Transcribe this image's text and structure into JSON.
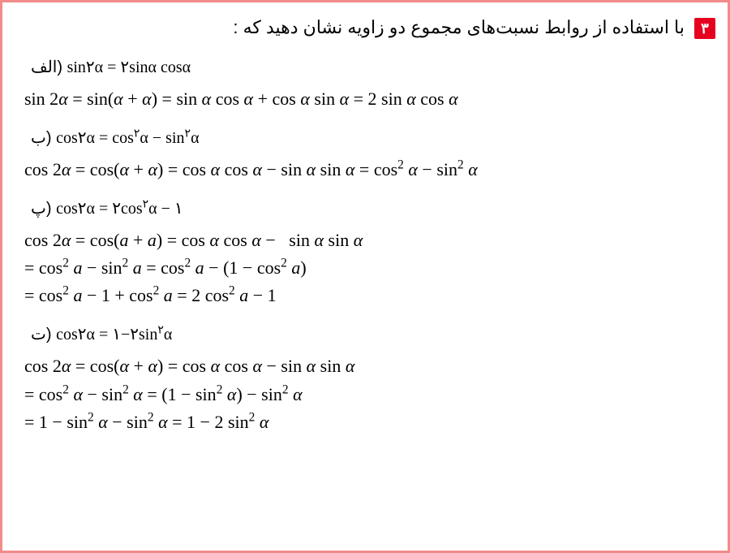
{
  "border_color": "#f38b8b",
  "accent_color": "#e6001f",
  "text_color": "#000000",
  "background_color": "#ffffff",
  "question_number": "۳",
  "question_text": "با استفاده از روابط نسبت‌های مجموع دو زاویه نشان دهید که :",
  "parts": {
    "alef": {
      "label": "الف)",
      "identity": "sin۲α = ۲sinα cosα",
      "solution": "sin 2α = sin(α + α) = sin α cos α + cos α sin α = 2 sin α cos α"
    },
    "be": {
      "label": "ب)",
      "identity": "cos۲α = cos²α − sin²α",
      "solution": "cos 2α = cos(α + α) = cos α cos α − sin α sin α = cos² α − sin² α"
    },
    "pe": {
      "label": "پ)",
      "identity": "cos۲α = ۲cos²α − ۱",
      "solution_line1": "cos 2α = cos(a + a) = cos α cos α −   sin α sin α",
      "solution_line2": "= cos² a − sin² a = cos² a − (1 − cos² a)",
      "solution_line3": "= cos² a − 1 + cos² a = 2 cos² a − 1"
    },
    "te": {
      "label": "ت)",
      "identity": "cos۲α = ۱−۲sin²α",
      "solution_line1": "cos 2α = cos(α + α) = cos α cos α − sin α sin α",
      "solution_line2": "= cos² α − sin² α = (1 − sin² α) − sin² α",
      "solution_line3": "= 1 − sin² α − sin² α = 1 − 2 sin² α"
    }
  }
}
